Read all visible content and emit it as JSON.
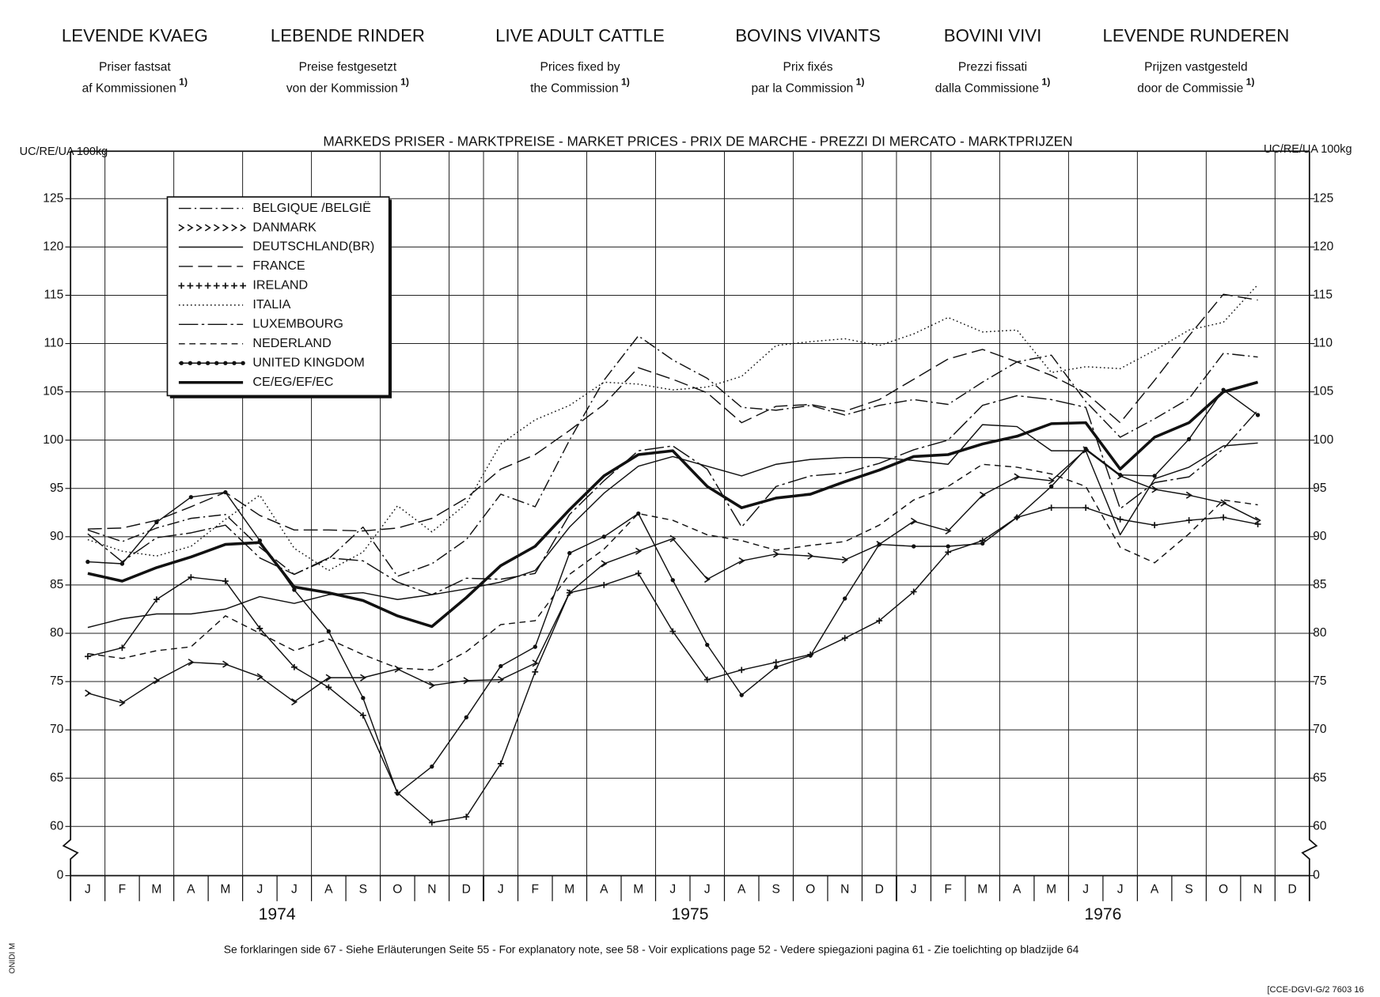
{
  "header": {
    "note_mark": "1)",
    "columns": [
      {
        "title": "LEVENDE KVAEG",
        "line1": "Priser fastsat",
        "line2": "af Kommissionen"
      },
      {
        "title": "LEBENDE RINDER",
        "line1": "Preise festgesetzt",
        "line2": "von der Kommission"
      },
      {
        "title": "LIVE ADULT CATTLE",
        "line1": "Prices fixed by",
        "line2": "the Commission"
      },
      {
        "title": "BOVINS VIVANTS",
        "line1": "Prix fixés",
        "line2": "par la Commission"
      },
      {
        "title": "BOVINI VIVI",
        "line1": "Prezzi fissati",
        "line2": "dalla Commissione"
      },
      {
        "title": "LEVENDE RUNDEREN",
        "line1": "Prijzen vastgesteld",
        "line2": "door de Commissie"
      }
    ]
  },
  "chart_data": {
    "type": "line",
    "subtitle": "MARKEDS PRISER - MARKTPREISE - MARKET PRICES - PRIX DE MARCHE - PREZZI DI MERCATO - MARKTPRIJZEN",
    "y_label": "UC/RE/UA 100kg",
    "categories": [
      "J",
      "F",
      "M",
      "A",
      "M",
      "J",
      "J",
      "A",
      "S",
      "O",
      "N",
      "D",
      "J",
      "F",
      "M",
      "A",
      "M",
      "J",
      "J",
      "A",
      "S",
      "O",
      "N",
      "D",
      "J",
      "F",
      "M",
      "A",
      "M",
      "J",
      "J",
      "A",
      "S",
      "O",
      "N",
      "D"
    ],
    "year_labels": [
      "1974",
      "1975",
      "1976"
    ],
    "ylim": [
      60,
      125
    ],
    "yticks": [
      0,
      60,
      65,
      70,
      75,
      80,
      85,
      90,
      95,
      100,
      105,
      110,
      115,
      120,
      125
    ],
    "axis_break": true,
    "grid": true,
    "legend": "upper-left",
    "series": [
      {
        "name": "BELGIQUE /BELGIË",
        "color": "#111111",
        "style": "dash-dot",
        "values": [
          90.7,
          89.5,
          90.9,
          91.9,
          92.3,
          88.9,
          86.1,
          87.7,
          91.0,
          85.9,
          87.2,
          89.7,
          94.4,
          93.1,
          100.0,
          106.2,
          110.8,
          108.3,
          106.4,
          103.4,
          103.1,
          103.6,
          102.6,
          103.6,
          104.2,
          103.7,
          106.0,
          108.1,
          108.8,
          104.0,
          100.3,
          102.2,
          104.3,
          109.0,
          108.6,
          null
        ]
      },
      {
        "name": "DANMARK",
        "color": "#111111",
        "style": "chevron",
        "values": [
          73.8,
          72.8,
          75.1,
          77.0,
          76.8,
          75.5,
          72.9,
          75.4,
          75.4,
          76.3,
          74.6,
          75.1,
          75.2,
          76.9,
          84.2,
          87.2,
          88.5,
          89.8,
          85.6,
          87.5,
          88.2,
          88.0,
          87.6,
          89.2,
          91.6,
          90.6,
          94.3,
          96.2,
          95.8,
          99.0,
          96.3,
          94.9,
          94.3,
          93.5,
          91.7,
          null
        ]
      },
      {
        "name": "DEUTSCHLAND(BR)",
        "color": "#111111",
        "style": "solid",
        "values": [
          80.6,
          81.5,
          82.0,
          82.0,
          82.5,
          83.8,
          83.1,
          84.0,
          84.2,
          83.5,
          84.0,
          84.6,
          85.3,
          86.5,
          91.0,
          94.5,
          97.3,
          98.3,
          97.3,
          96.3,
          97.5,
          98.0,
          98.2,
          98.2,
          97.9,
          97.5,
          101.6,
          101.4,
          98.9,
          98.9,
          90.2,
          96.0,
          97.2,
          99.4,
          99.7,
          null
        ]
      },
      {
        "name": "FRANCE",
        "color": "#111111",
        "style": "long-dash",
        "values": [
          90.8,
          90.9,
          91.7,
          93.1,
          94.6,
          92.2,
          90.7,
          90.7,
          90.6,
          90.9,
          91.9,
          94.0,
          97.0,
          98.5,
          101.0,
          103.7,
          107.5,
          106.3,
          104.9,
          101.8,
          103.5,
          103.7,
          103.0,
          104.2,
          106.3,
          108.4,
          109.4,
          108.1,
          106.7,
          104.9,
          101.8,
          106.2,
          110.8,
          115.1,
          114.5,
          null
        ]
      },
      {
        "name": "IRELAND",
        "color": "#111111",
        "style": "plus",
        "values": [
          77.6,
          78.5,
          83.5,
          85.8,
          85.4,
          80.5,
          76.5,
          74.4,
          71.5,
          63.5,
          60.4,
          61.0,
          66.5,
          76.0,
          84.2,
          85.0,
          86.2,
          80.2,
          75.2,
          76.2,
          77.0,
          77.8,
          79.5,
          81.3,
          84.3,
          88.4,
          89.6,
          92.0,
          93.0,
          93.0,
          91.8,
          91.2,
          91.7,
          92.0,
          91.3,
          null
        ]
      },
      {
        "name": "ITALIA",
        "color": "#111111",
        "style": "dotted",
        "values": [
          89.7,
          88.5,
          88.0,
          89.0,
          91.8,
          94.3,
          88.8,
          86.5,
          88.4,
          93.2,
          90.5,
          93.4,
          99.6,
          102.1,
          103.6,
          106.0,
          105.8,
          105.2,
          105.5,
          106.6,
          109.8,
          110.2,
          110.5,
          109.8,
          111.0,
          112.7,
          111.2,
          111.4,
          107.0,
          107.6,
          107.4,
          109.3,
          111.4,
          112.2,
          116.1,
          null
        ]
      },
      {
        "name": "LUXEMBOURG",
        "color": "#111111",
        "style": "dash-dot-long",
        "values": [
          90.3,
          87.4,
          89.9,
          90.4,
          91.2,
          87.8,
          86.1,
          87.8,
          87.5,
          85.3,
          84.0,
          85.7,
          85.6,
          86.2,
          92.3,
          95.8,
          98.9,
          99.4,
          97.0,
          91.0,
          95.2,
          96.3,
          96.6,
          97.6,
          99.0,
          100.0,
          103.6,
          104.6,
          104.2,
          103.4,
          92.9,
          95.6,
          96.2,
          99.1,
          103.1,
          null
        ]
      },
      {
        "name": "NEDERLAND",
        "color": "#111111",
        "style": "short-dash",
        "values": [
          77.9,
          77.4,
          78.2,
          78.6,
          81.8,
          80.0,
          78.2,
          79.4,
          77.8,
          76.4,
          76.2,
          78.1,
          80.9,
          81.3,
          86.1,
          88.7,
          92.4,
          91.7,
          90.2,
          89.6,
          88.6,
          89.1,
          89.5,
          91.2,
          93.8,
          95.2,
          97.5,
          97.2,
          96.5,
          95.2,
          88.9,
          87.3,
          90.3,
          93.8,
          93.3,
          null
        ]
      },
      {
        "name": "UNITED KINGDOM",
        "color": "#111111",
        "style": "circle",
        "values": [
          87.4,
          87.2,
          91.5,
          94.1,
          94.6,
          89.6,
          84.5,
          80.2,
          73.3,
          63.4,
          66.2,
          71.3,
          76.6,
          78.6,
          88.3,
          90.0,
          92.4,
          85.5,
          78.8,
          73.6,
          76.5,
          77.7,
          83.6,
          89.2,
          89.0,
          89.0,
          89.3,
          92.0,
          95.2,
          99.1,
          96.4,
          96.3,
          100.1,
          105.2,
          102.6,
          null
        ]
      },
      {
        "name": "CE/EG/EF/EC",
        "color": "#111111",
        "style": "thick",
        "values": [
          86.2,
          85.4,
          86.8,
          87.9,
          89.2,
          89.4,
          84.8,
          84.2,
          83.4,
          81.8,
          80.7,
          83.7,
          87.0,
          89.0,
          92.8,
          96.3,
          98.5,
          98.9,
          95.2,
          93.0,
          94.0,
          94.4,
          95.7,
          96.9,
          98.3,
          98.5,
          99.6,
          100.4,
          101.7,
          101.8,
          97.0,
          100.3,
          101.8,
          105.0,
          106.0,
          null
        ]
      }
    ]
  },
  "footer": {
    "note": "Se forklaringen side 67 - Siehe Erläuterungen Seite 55 - For explanatory note, see 58 - Voir explications page 52 - Vedere spiegazioni pagina 61 - Zie toelichting op bladzijde 64",
    "side_mark": "ONIDI M",
    "code": "[CCE-DGVI-G/2 7603 16"
  }
}
